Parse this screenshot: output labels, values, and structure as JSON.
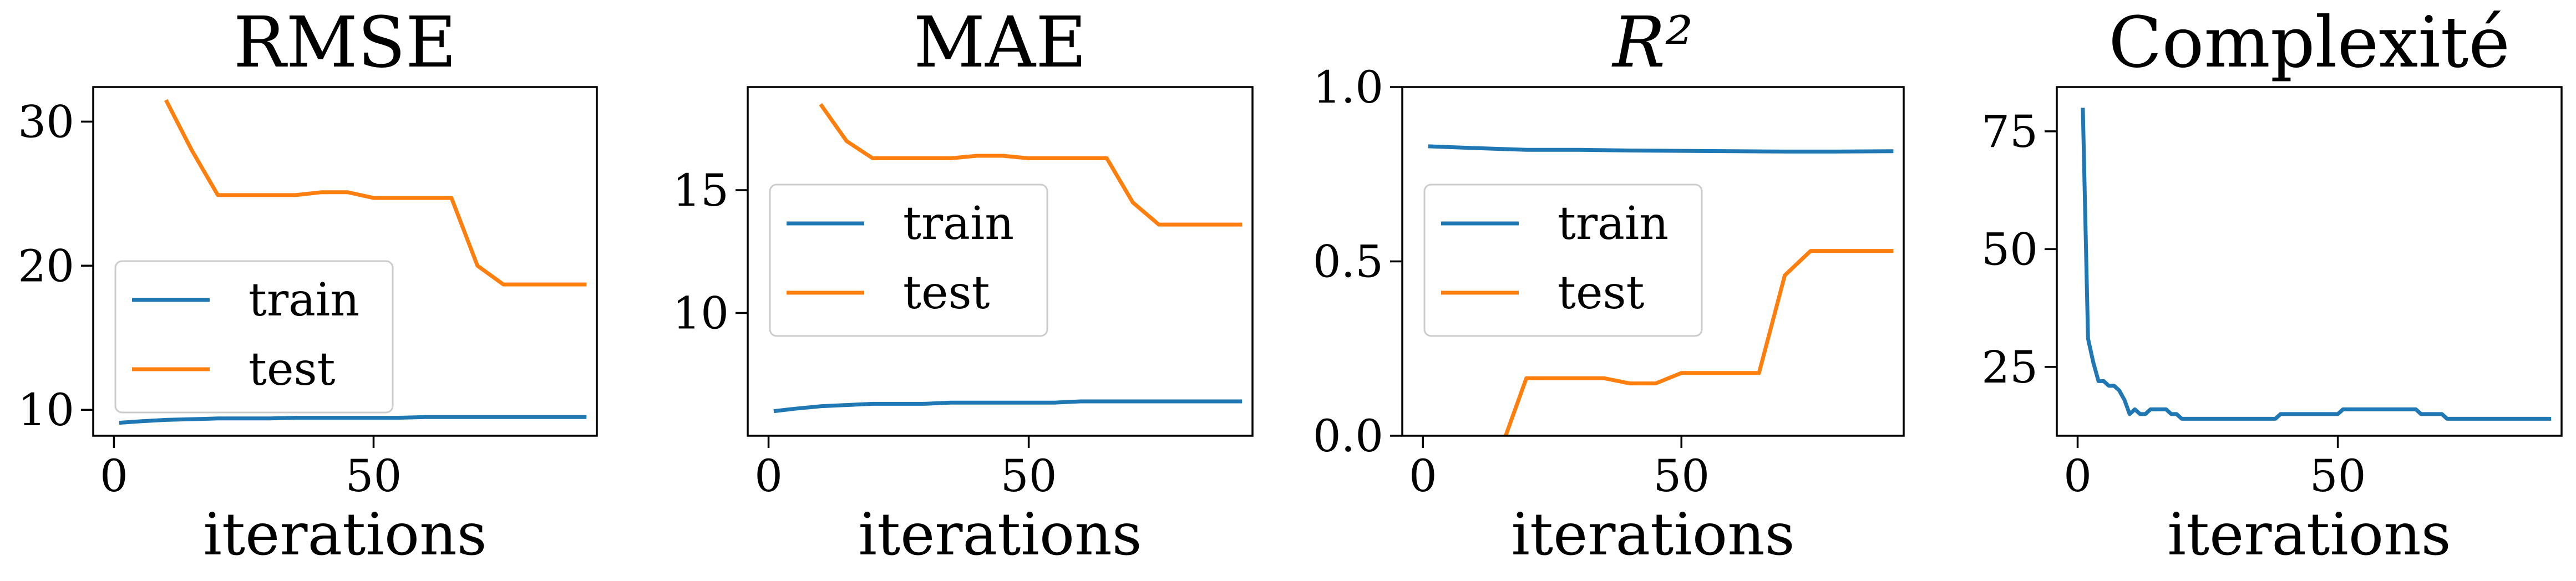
{
  "chart_data": [
    {
      "type": "line",
      "title": "RMSE",
      "xlabel": "iterations",
      "ylabel": "",
      "xlim": [
        -4,
        93
      ],
      "ylim": [
        8.2,
        32.4
      ],
      "xticks": [
        0,
        50
      ],
      "yticks": [
        10,
        20,
        30
      ],
      "legend": {
        "placement": "lower-left"
      },
      "series": [
        {
          "name": "train",
          "color": "#1f77b4",
          "x": [
            1,
            5,
            10,
            15,
            20,
            25,
            30,
            35,
            40,
            45,
            50,
            55,
            60,
            65,
            70,
            75,
            80,
            85,
            91
          ],
          "y": [
            9.1,
            9.2,
            9.3,
            9.35,
            9.4,
            9.4,
            9.4,
            9.45,
            9.45,
            9.45,
            9.45,
            9.45,
            9.5,
            9.5,
            9.5,
            9.5,
            9.5,
            9.5,
            9.5
          ]
        },
        {
          "name": "test",
          "color": "#ff7f0e",
          "x": [
            10,
            15,
            20,
            25,
            30,
            35,
            40,
            45,
            50,
            55,
            60,
            65,
            70,
            75,
            80,
            85,
            91
          ],
          "y": [
            31.5,
            28,
            24.9,
            24.9,
            24.9,
            24.9,
            25.1,
            25.1,
            24.7,
            24.7,
            24.7,
            24.7,
            20,
            18.7,
            18.7,
            18.7,
            18.7
          ]
        }
      ]
    },
    {
      "type": "line",
      "title": "MAE",
      "xlabel": "iterations",
      "ylabel": "",
      "xlim": [
        -4,
        93
      ],
      "ylim": [
        5.0,
        19.2
      ],
      "xticks": [
        0,
        50
      ],
      "yticks": [
        10,
        15
      ],
      "legend": {
        "placement": "upper-left"
      },
      "series": [
        {
          "name": "train",
          "color": "#1f77b4",
          "x": [
            1,
            5,
            10,
            15,
            20,
            25,
            30,
            35,
            40,
            45,
            50,
            55,
            60,
            65,
            70,
            75,
            80,
            85,
            91
          ],
          "y": [
            6.0,
            6.1,
            6.2,
            6.25,
            6.3,
            6.3,
            6.3,
            6.35,
            6.35,
            6.35,
            6.35,
            6.35,
            6.4,
            6.4,
            6.4,
            6.4,
            6.4,
            6.4,
            6.4
          ]
        },
        {
          "name": "test",
          "color": "#ff7f0e",
          "x": [
            10,
            15,
            20,
            25,
            30,
            35,
            40,
            45,
            50,
            55,
            60,
            65,
            70,
            75,
            80,
            85,
            91
          ],
          "y": [
            18.5,
            17.0,
            16.3,
            16.3,
            16.3,
            16.3,
            16.4,
            16.4,
            16.3,
            16.3,
            16.3,
            16.3,
            14.5,
            13.6,
            13.6,
            13.6,
            13.6
          ]
        }
      ]
    },
    {
      "type": "line",
      "title": "R²",
      "xlabel": "iterations",
      "ylabel": "",
      "xlim": [
        -4,
        93
      ],
      "ylim": [
        0.0,
        1.0
      ],
      "xticks": [
        0,
        50
      ],
      "yticks": [
        "0.0",
        "0.5",
        "1.0"
      ],
      "legend": {
        "placement": "center-left"
      },
      "series": [
        {
          "name": "train",
          "color": "#1f77b4",
          "x": [
            1,
            10,
            20,
            30,
            40,
            50,
            60,
            70,
            80,
            91
          ],
          "y": [
            0.83,
            0.825,
            0.82,
            0.82,
            0.818,
            0.817,
            0.816,
            0.815,
            0.815,
            0.816
          ]
        },
        {
          "name": "test",
          "color": "#ff7f0e",
          "x": [
            10,
            16,
            20,
            25,
            30,
            35,
            40,
            45,
            50,
            55,
            60,
            65,
            70,
            75,
            80,
            85,
            91
          ],
          "y": [
            -0.3,
            0.0,
            0.165,
            0.165,
            0.165,
            0.165,
            0.15,
            0.15,
            0.18,
            0.18,
            0.18,
            0.18,
            0.46,
            0.53,
            0.53,
            0.53,
            0.53
          ]
        }
      ]
    },
    {
      "type": "line",
      "title": "Complexité",
      "xlabel": "iterations",
      "ylabel": "",
      "xlim": [
        -4,
        93
      ],
      "ylim": [
        10.4,
        84.4
      ],
      "xticks": [
        0,
        50
      ],
      "yticks": [
        25,
        50,
        75
      ],
      "legend": {
        "placement": "none"
      },
      "series": [
        {
          "color": "#1f77b4",
          "x": [
            1,
            2,
            3,
            4,
            5,
            6,
            7,
            8,
            9,
            10,
            11,
            12,
            13,
            14,
            15,
            17,
            18,
            19,
            20,
            25,
            30,
            35,
            38,
            39,
            45,
            50,
            51,
            60,
            65,
            66,
            70,
            71,
            75,
            80,
            85,
            91
          ],
          "y": [
            80,
            31,
            26,
            22,
            22,
            21,
            21,
            20,
            18,
            15,
            16,
            15,
            15,
            16,
            16,
            16,
            15,
            15,
            14,
            14,
            14,
            14,
            14,
            15,
            15,
            15,
            16,
            16,
            16,
            15,
            15,
            14,
            14,
            14,
            14,
            14
          ]
        }
      ]
    }
  ]
}
